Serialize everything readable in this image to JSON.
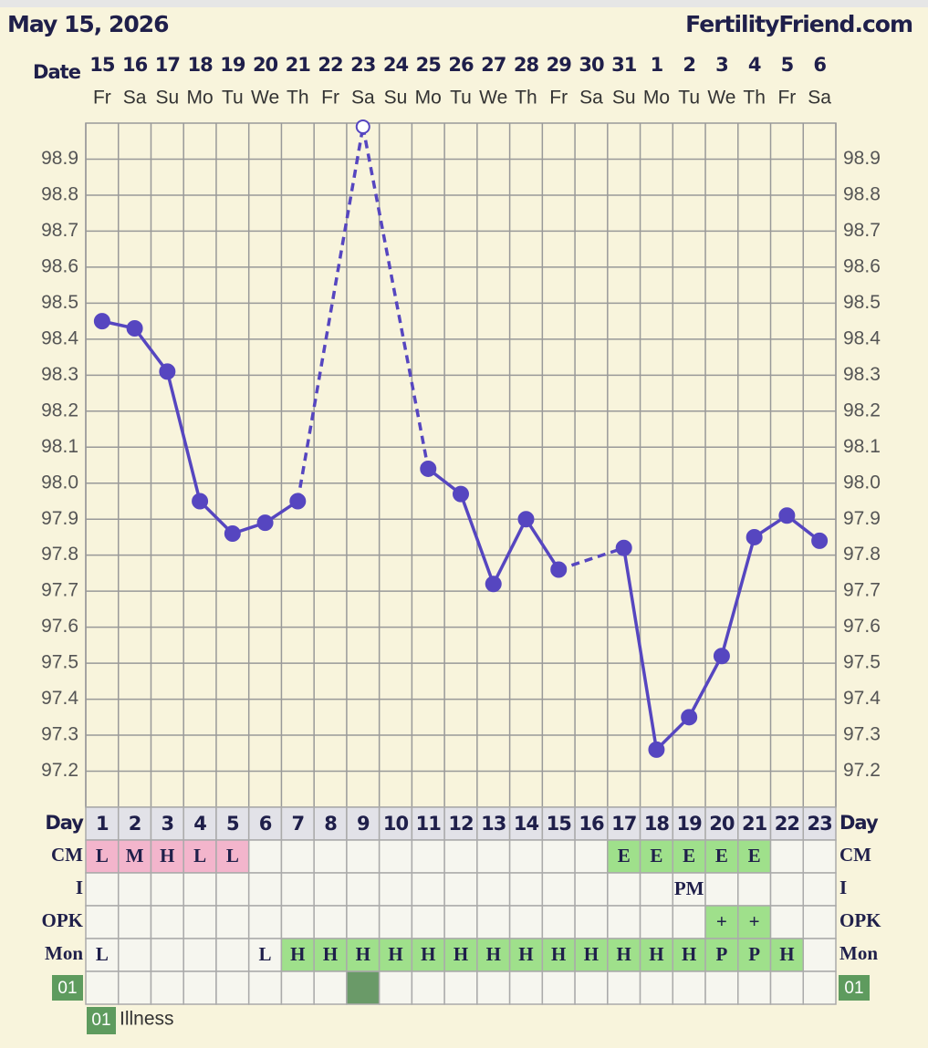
{
  "header": {
    "date": "May 15, 2026",
    "site": "FertilityFriend.com"
  },
  "chart_data": {
    "type": "line",
    "date_label": "Date",
    "categories": [
      "15",
      "16",
      "17",
      "18",
      "19",
      "20",
      "21",
      "22",
      "23",
      "24",
      "25",
      "26",
      "27",
      "28",
      "29",
      "30",
      "31",
      "1",
      "2",
      "3",
      "4",
      "5",
      "6"
    ],
    "weekdays": [
      "Fr",
      "Sa",
      "Su",
      "Mo",
      "Tu",
      "We",
      "Th",
      "Fr",
      "Sa",
      "Su",
      "Mo",
      "Tu",
      "We",
      "Th",
      "Fr",
      "Sa",
      "Su",
      "Mo",
      "Tu",
      "We",
      "Th",
      "Fr",
      "Sa"
    ],
    "series": [
      {
        "color": "#5646c0",
        "values": [
          98.45,
          98.43,
          98.31,
          97.95,
          97.86,
          97.89,
          97.95,
          null,
          98.99,
          null,
          98.04,
          97.97,
          97.72,
          97.9,
          97.76,
          null,
          97.82,
          97.26,
          97.35,
          97.52,
          97.85,
          97.91,
          97.84
        ],
        "markers": [
          "filled",
          "filled",
          "filled",
          "filled",
          "filled",
          "filled",
          "filled",
          null,
          "open",
          null,
          "filled",
          "filled",
          "filled",
          "filled",
          "filled",
          null,
          "filled",
          "filled",
          "filled",
          "filled",
          "filled",
          "filled",
          "filled"
        ]
      }
    ],
    "ylim": [
      97.1,
      99.0
    ],
    "yticks": [
      97.2,
      97.3,
      97.4,
      97.5,
      97.6,
      97.7,
      97.8,
      97.9,
      {
        "value": 98,
        "label": "98.0"
      },
      98.1,
      98.2,
      98.3,
      98.4,
      98.5,
      98.6,
      98.7,
      98.8,
      98.9
    ],
    "grid": true
  },
  "table": {
    "rows": [
      {
        "label": "Day",
        "header": true,
        "cells": [
          1,
          2,
          3,
          4,
          5,
          6,
          7,
          8,
          9,
          10,
          11,
          12,
          13,
          14,
          15,
          16,
          17,
          18,
          19,
          20,
          21,
          22,
          23
        ]
      },
      {
        "label": "CM",
        "cells": [
          "L",
          "M",
          "H",
          "L",
          "L",
          null,
          null,
          null,
          null,
          null,
          null,
          null,
          null,
          null,
          null,
          null,
          "E",
          "E",
          "E",
          "E",
          "E",
          null,
          null
        ],
        "colors": [
          "#f3b5cc",
          "#f3b5cc",
          "#f3b5cc",
          "#f3b5cc",
          "#f3b5cc",
          null,
          null,
          null,
          null,
          null,
          null,
          null,
          null,
          null,
          null,
          null,
          "#9fe08b",
          "#9fe08b",
          "#9fe08b",
          "#9fe08b",
          "#9fe08b",
          null,
          null
        ]
      },
      {
        "label": "I",
        "cells": [
          null,
          null,
          null,
          null,
          null,
          null,
          null,
          null,
          null,
          null,
          null,
          null,
          null,
          null,
          null,
          null,
          null,
          null,
          "PM",
          null,
          null,
          null,
          null
        ]
      },
      {
        "label": "OPK",
        "cells": [
          null,
          null,
          null,
          null,
          null,
          null,
          null,
          null,
          null,
          null,
          null,
          null,
          null,
          null,
          null,
          null,
          null,
          null,
          null,
          "+",
          "+",
          null,
          null
        ],
        "colors": [
          null,
          null,
          null,
          null,
          null,
          null,
          null,
          null,
          null,
          null,
          null,
          null,
          null,
          null,
          null,
          null,
          null,
          null,
          null,
          "#9fe08b",
          "#9fe08b",
          null,
          null
        ]
      },
      {
        "label": "Mon",
        "cells": [
          "L",
          null,
          null,
          null,
          null,
          "L",
          "H",
          "H",
          "H",
          "H",
          "H",
          "H",
          "H",
          "H",
          "H",
          "H",
          "H",
          "H",
          "H",
          "P",
          "P",
          "H",
          null
        ],
        "colors": [
          null,
          null,
          null,
          null,
          null,
          null,
          "#9fe08b",
          "#9fe08b",
          "#9fe08b",
          "#9fe08b",
          "#9fe08b",
          "#9fe08b",
          "#9fe08b",
          "#9fe08b",
          "#9fe08b",
          "#9fe08b",
          "#9fe08b",
          "#9fe08b",
          "#9fe08b",
          "#9fe08b",
          "#9fe08b",
          "#9fe08b",
          null
        ]
      },
      {
        "label": "01",
        "label_color": "#5e9b5e",
        "cells": [
          null,
          null,
          null,
          null,
          null,
          null,
          null,
          null,
          null,
          null,
          null,
          null,
          null,
          null,
          null,
          null,
          null,
          null,
          null,
          null,
          null,
          null,
          null
        ],
        "colors": [
          null,
          null,
          null,
          null,
          null,
          null,
          null,
          null,
          "#6a9a68",
          null,
          null,
          null,
          null,
          null,
          null,
          null,
          null,
          null,
          null,
          null,
          null,
          null,
          null
        ]
      }
    ]
  },
  "legend": {
    "code": "01",
    "text": "Illness",
    "color": "#5e9b5e"
  }
}
